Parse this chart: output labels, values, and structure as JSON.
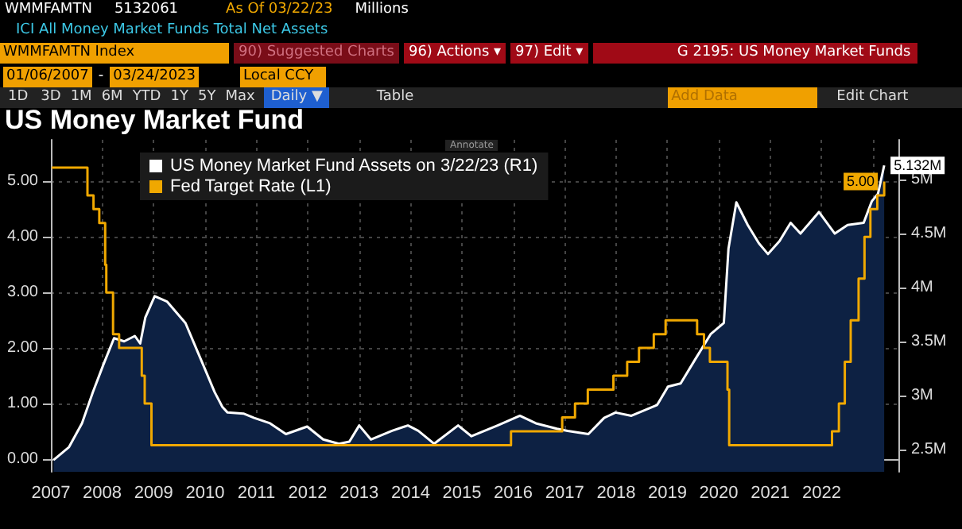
{
  "chart_data": {
    "type": "area",
    "title": "US Money Market Fund",
    "annotations": [
      "WMMFAMTN",
      "5132061",
      "As Of 03/22/23",
      "Millions",
      "ICI All Money Market Funds Total Net Assets",
      "WMMFAMTN Index",
      "90) Suggested Charts",
      "96) Actions ▾",
      "97) Edit ▾",
      "G 2195: US Money Market Funds",
      "01/06/2007",
      "-",
      "03/24/2023",
      "Local CCY",
      "1D",
      "3D",
      "1M",
      "6M",
      "YTD",
      "1Y",
      "5Y",
      "Max",
      "Daily ▼",
      "Table",
      "Add Data",
      "Edit Chart",
      "Annotate"
    ],
    "xlim": [
      "2007-01-01",
      "2023-07-01"
    ],
    "xticks": [
      {
        "value": "2007-01-01",
        "label": "2007"
      },
      {
        "value": "2008-01-01",
        "label": "2008"
      },
      {
        "value": "2009-01-01",
        "label": "2009"
      },
      {
        "value": "2010-01-01",
        "label": "2010"
      },
      {
        "value": "2011-01-01",
        "label": "2011"
      },
      {
        "value": "2012-01-01",
        "label": "2012"
      },
      {
        "value": "2013-01-01",
        "label": "2013"
      },
      {
        "value": "2014-01-01",
        "label": "2014"
      },
      {
        "value": "2015-01-01",
        "label": "2015"
      },
      {
        "value": "2016-01-01",
        "label": "2016"
      },
      {
        "value": "2017-01-01",
        "label": "2017"
      },
      {
        "value": "2018-01-01",
        "label": "2018"
      },
      {
        "value": "2019-01-01",
        "label": "2019"
      },
      {
        "value": "2020-01-01",
        "label": "2020"
      },
      {
        "value": "2021-01-01",
        "label": "2021"
      },
      {
        "value": "2022-01-01",
        "label": "2022"
      },
      {
        "value": "2023-01-01",
        "label": null
      }
    ],
    "ylim": [
      -0.23,
      5.75
    ],
    "yticks": [
      {
        "value": 0,
        "label": "0.00"
      },
      {
        "value": 1,
        "label": "1.00"
      },
      {
        "value": 2,
        "label": "2.00"
      },
      {
        "value": 3,
        "label": "3.00"
      },
      {
        "value": 4,
        "label": "4.00"
      },
      {
        "value": 5,
        "label": "5.00"
      }
    ],
    "y2lim": [
      2290000,
      5370000
    ],
    "y2ticks": [
      {
        "value": 2500000,
        "label": "2.5M"
      },
      {
        "value": 3000000,
        "label": "3M"
      },
      {
        "value": 3500000,
        "label": "3.5M"
      },
      {
        "value": 4000000,
        "label": "4M"
      },
      {
        "value": 4500000,
        "label": "4.5M"
      },
      {
        "value": 5000000,
        "label": "5M"
      }
    ],
    "grid": true,
    "legend": "top left",
    "series": [
      {
        "name": "US Money Market Fund Assets on 3/22/23 (R1)",
        "axis": "y2",
        "color": "#ffffff",
        "x": [
          "2007-01-20",
          "2007-05-10",
          "2007-08-10",
          "2007-10-27",
          "2008-01-08",
          "2008-03-25",
          "2008-06-05",
          "2008-08-20",
          "2008-09-27",
          "2008-11-02",
          "2009-01-08",
          "2009-04-05",
          "2009-08-15",
          "2009-11-17",
          "2010-03-10",
          "2010-05-05",
          "2010-06-10",
          "2010-10-01",
          "2010-12-16",
          "2011-04-08",
          "2011-07-30",
          "2011-12-28",
          "2012-04-20",
          "2012-08-10",
          "2012-10-23",
          "2013-01-01",
          "2013-03-25",
          "2013-08-22",
          "2013-12-13",
          "2014-02-25",
          "2014-06-17",
          "2014-12-05",
          "2015-03-10",
          "2015-09-12",
          "2016-02-17",
          "2016-06-10",
          "2016-11-06",
          "2017-01-22",
          "2017-06-18",
          "2017-10-08",
          "2017-12-28",
          "2018-04-20",
          "2018-10-20",
          "2019-01-05",
          "2019-04-05",
          "2019-07-16",
          "2019-11-06",
          "2020-02-06",
          "2020-03-10",
          "2020-05-05",
          "2020-07-25",
          "2020-10-12",
          "2020-12-16",
          "2021-03-08",
          "2021-05-26",
          "2021-08-04",
          "2021-12-13",
          "2022-04-05",
          "2022-07-05",
          "2022-10-27",
          "2022-12-24",
          "2023-02-06",
          "2023-03-22"
        ],
        "values": [
          2400000,
          2520000,
          2740000,
          3030000,
          3280000,
          3530000,
          3500000,
          3550000,
          3480000,
          3720000,
          3920000,
          3870000,
          3670000,
          3380000,
          3030000,
          2890000,
          2840000,
          2830000,
          2790000,
          2740000,
          2640000,
          2710000,
          2590000,
          2550000,
          2570000,
          2720000,
          2590000,
          2670000,
          2720000,
          2670000,
          2550000,
          2720000,
          2620000,
          2720000,
          2810000,
          2740000,
          2690000,
          2670000,
          2640000,
          2790000,
          2840000,
          2810000,
          2910000,
          3080000,
          3110000,
          3330000,
          3570000,
          3670000,
          4360000,
          4790000,
          4580000,
          4410000,
          4310000,
          4430000,
          4600000,
          4500000,
          4700000,
          4500000,
          4580000,
          4600000,
          4800000,
          4870000,
          5132061
        ],
        "value_labels": [
          null,
          null,
          null,
          null,
          null,
          null,
          null,
          null,
          null,
          null,
          null,
          null,
          null,
          null,
          null,
          null,
          null,
          null,
          null,
          null,
          null,
          null,
          null,
          null,
          null,
          null,
          null,
          null,
          null,
          null,
          null,
          null,
          null,
          null,
          null,
          null,
          null,
          null,
          null,
          null,
          null,
          null,
          null,
          null,
          null,
          null,
          null,
          null,
          null,
          null,
          null,
          null,
          null,
          null,
          null,
          null,
          null,
          null,
          null,
          null,
          null,
          null,
          "5.132M"
        ]
      },
      {
        "name": "Fed Target Rate (L1)",
        "type": "step",
        "color": "#f0a800",
        "x": [
          "2007-01-06",
          "2007-09-18",
          "2007-10-31",
          "2007-12-11",
          "2008-01-22",
          "2008-01-30",
          "2008-03-18",
          "2008-04-30",
          "2008-10-08",
          "2008-10-29",
          "2008-12-16",
          "2015-12-16",
          "2016-12-14",
          "2017-03-15",
          "2017-06-14",
          "2017-12-13",
          "2018-03-21",
          "2018-06-13",
          "2018-09-26",
          "2018-12-19",
          "2019-07-31",
          "2019-09-18",
          "2019-10-30",
          "2020-03-03",
          "2020-03-15",
          "2022-03-16",
          "2022-05-04",
          "2022-06-15",
          "2022-07-27",
          "2022-09-21",
          "2022-11-02",
          "2022-12-14",
          "2023-02-01",
          "2023-03-22"
        ],
        "values": [
          5.25,
          4.75,
          4.5,
          4.25,
          3.5,
          3,
          2.25,
          2,
          1.5,
          1,
          0.25,
          0.5,
          0.75,
          1,
          1.25,
          1.5,
          1.75,
          2,
          2.25,
          2.5,
          2.25,
          2,
          1.75,
          1.25,
          0.25,
          0.5,
          1,
          1.75,
          2.5,
          3.25,
          4,
          4.5,
          4.75,
          5
        ],
        "value_labels": [
          null,
          null,
          null,
          null,
          null,
          null,
          null,
          null,
          null,
          null,
          null,
          null,
          null,
          null,
          null,
          null,
          null,
          null,
          null,
          null,
          null,
          null,
          null,
          null,
          null,
          null,
          null,
          null,
          null,
          null,
          null,
          null,
          null,
          "5.00"
        ]
      }
    ]
  }
}
